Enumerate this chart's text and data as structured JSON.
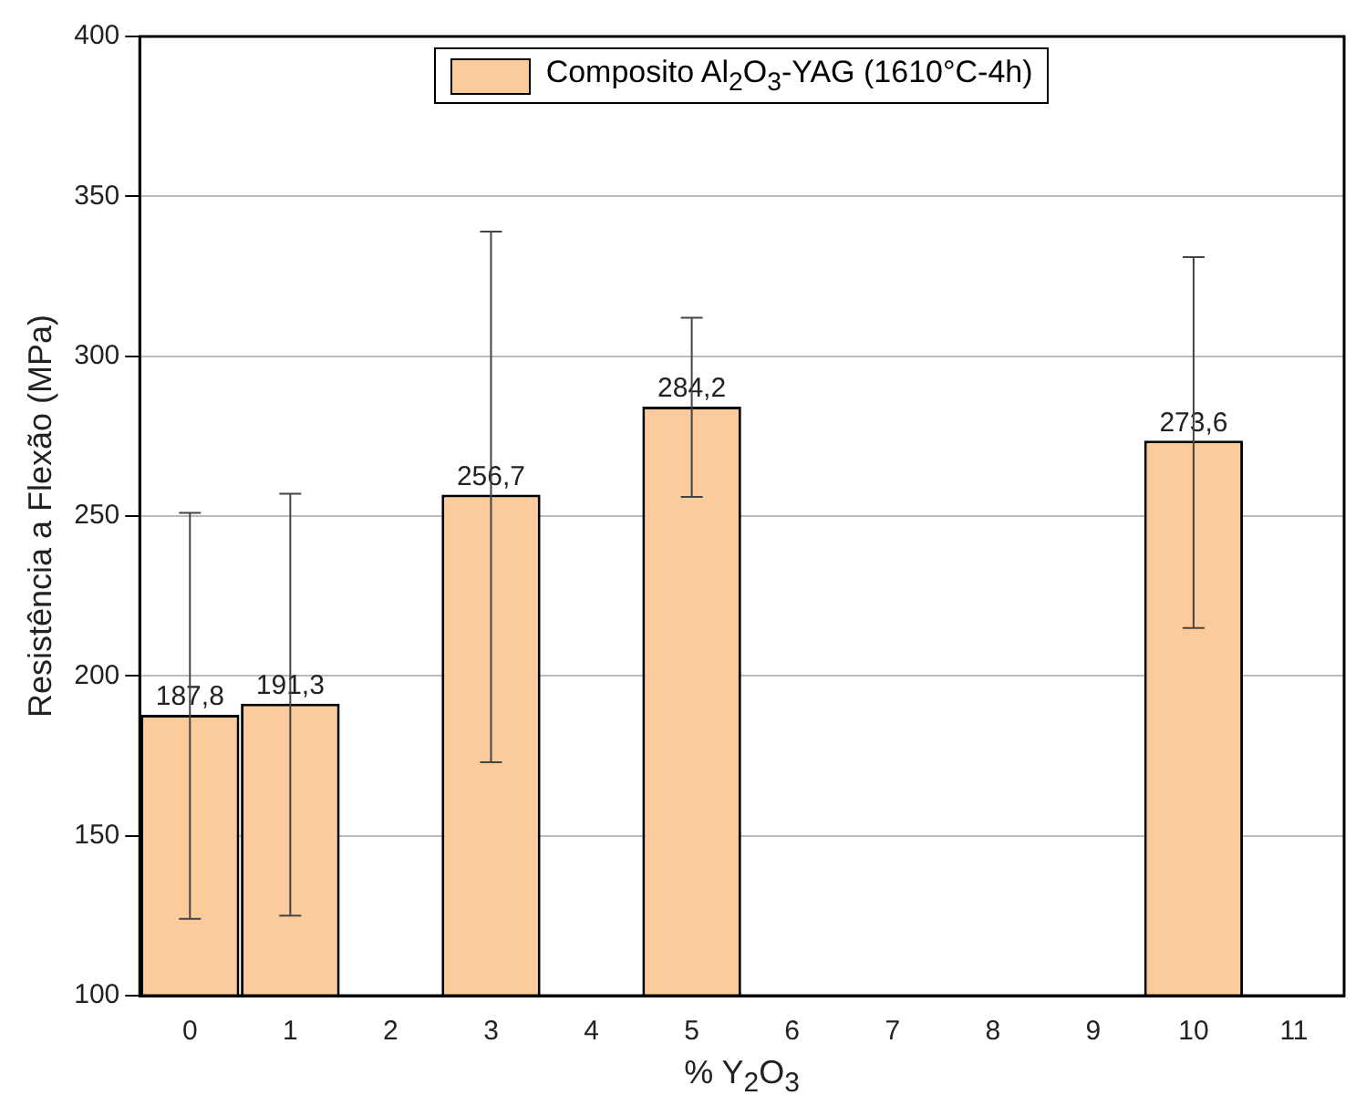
{
  "chart_data": {
    "type": "bar",
    "xlabel": "% Y$_{2}$O$_{3}$",
    "ylabel": "Resistência a Flexão (MPa)",
    "categories": [
      "0",
      "1",
      "2",
      "3",
      "4",
      "5",
      "6",
      "7",
      "8",
      "9",
      "10",
      "11"
    ],
    "series": [
      {
        "name": "Composito Al$_{2}$O$_{3}$-YAG (1610°C-4h)",
        "color": "#fbcb9c",
        "values": [
          187.8,
          191.3,
          null,
          256.7,
          null,
          284.2,
          null,
          null,
          null,
          null,
          273.6,
          null
        ],
        "errors": [
          [
            124,
            251
          ],
          [
            125,
            257
          ],
          null,
          [
            173,
            339
          ],
          null,
          [
            256,
            312
          ],
          null,
          null,
          null,
          null,
          [
            215,
            331
          ],
          null
        ],
        "value_labels": [
          "187,8",
          "191,3",
          null,
          "256,7",
          null,
          "284,2",
          null,
          null,
          null,
          null,
          "273,6",
          null
        ]
      }
    ],
    "ylim": [
      100,
      400
    ],
    "yticks": [
      100,
      150,
      200,
      250,
      300,
      350,
      400
    ],
    "grid": "y",
    "legend": "top"
  }
}
